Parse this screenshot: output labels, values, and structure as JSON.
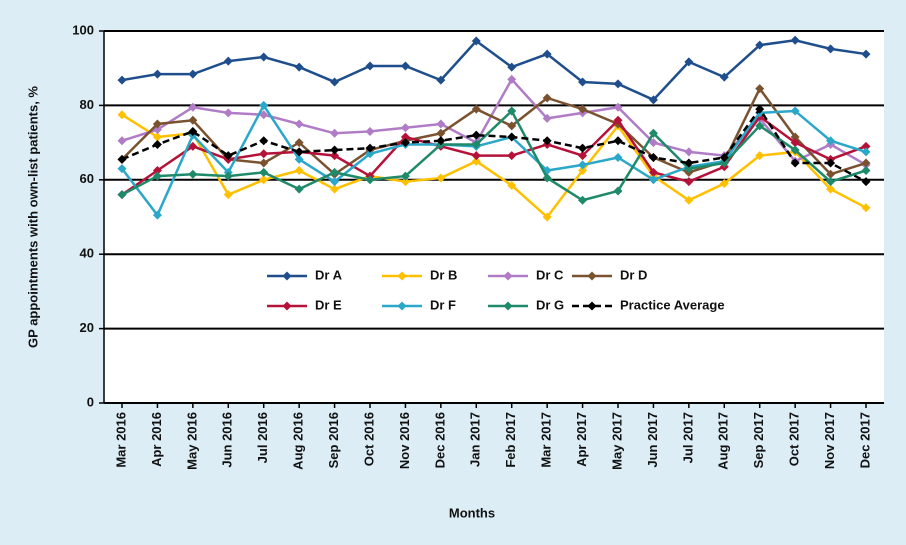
{
  "chart_data": {
    "type": "line",
    "x_label": "Months",
    "y_label": "GP appointments with own-list patients, %",
    "categories": [
      "Mar 2016",
      "Apr 2016",
      "May 2016",
      "Jun 2016",
      "Jul 2016",
      "Aug 2016",
      "Sep 2016",
      "Oct 2016",
      "Nov 2016",
      "Dec 2016",
      "Jan 2017",
      "Feb 2017",
      "Mar 2017",
      "Apr 2017",
      "May 2017",
      "Jun 2017",
      "Jul 2017",
      "Aug 2017",
      "Sep 2017",
      "Oct 2017",
      "Nov 2017",
      "Dec 2017"
    ],
    "series": [
      {
        "name": "Dr A",
        "color": "#1f4e8c",
        "values": [
          86.8,
          88.4,
          88.4,
          91.9,
          93.0,
          90.3,
          86.3,
          90.6,
          90.6,
          86.8,
          97.3,
          90.3,
          93.8,
          86.3,
          85.8,
          81.5,
          91.7,
          87.6,
          96.2,
          97.5,
          95.2,
          93.8
        ]
      },
      {
        "name": "Dr B",
        "color": "#ffc000",
        "values": [
          77.5,
          71.5,
          72.5,
          56,
          60,
          62.5,
          57.5,
          61,
          59.5,
          60.5,
          65,
          58.5,
          50,
          62.5,
          74.5,
          61,
          54.5,
          59,
          66.5,
          67.5,
          57.5,
          52.5
        ]
      },
      {
        "name": "Dr C",
        "color": "#b07cc6",
        "values": [
          70.5,
          73.5,
          79.5,
          78,
          77.5,
          75,
          72.5,
          73,
          74,
          75,
          70,
          87,
          76.5,
          78,
          79.5,
          70,
          67.5,
          66.5,
          76.5,
          65,
          69.5,
          64
        ]
      },
      {
        "name": "Dr D",
        "color": "#7a5230",
        "values": [
          65.5,
          75,
          76,
          65.5,
          64.5,
          70,
          61.5,
          68,
          70.5,
          72.5,
          79,
          74.5,
          82,
          79,
          75,
          66,
          62,
          65,
          84.5,
          71.5,
          61.5,
          64.5
        ]
      },
      {
        "name": "Dr E",
        "color": "#b5123a",
        "values": [
          56,
          62.5,
          69,
          65.5,
          67,
          67.5,
          66.5,
          61,
          71.5,
          69,
          66.5,
          66.5,
          69.5,
          66.5,
          76,
          62,
          59.5,
          63.5,
          77,
          70,
          65.5,
          69
        ]
      },
      {
        "name": "Dr F",
        "color": "#2aa7c9",
        "values": [
          63,
          50.5,
          72,
          62,
          80,
          65.5,
          59.5,
          67,
          69.5,
          69.5,
          69,
          71.5,
          62.5,
          64,
          66,
          60,
          63.5,
          65,
          78,
          78.5,
          70.5,
          67.5
        ]
      },
      {
        "name": "Dr G",
        "color": "#1f8a6a",
        "values": [
          56,
          61,
          61.5,
          61,
          62,
          57.5,
          62,
          60,
          61,
          69.5,
          69.5,
          78.5,
          60.5,
          54.5,
          57,
          72.5,
          63,
          64.5,
          74.5,
          68,
          59.5,
          62.5
        ]
      },
      {
        "name": "Practice Average",
        "color": "#000000",
        "dashed": true,
        "values": [
          65.5,
          69.5,
          73,
          66.5,
          70.5,
          67.5,
          68,
          68.5,
          70,
          70.5,
          72,
          71.5,
          70.5,
          68.5,
          70.5,
          66,
          64.5,
          66,
          79,
          64.5,
          64.5,
          59.5
        ]
      }
    ],
    "ylim": [
      0,
      100
    ],
    "yticks": [
      0,
      20,
      40,
      60,
      80,
      100
    ],
    "grid": true
  }
}
